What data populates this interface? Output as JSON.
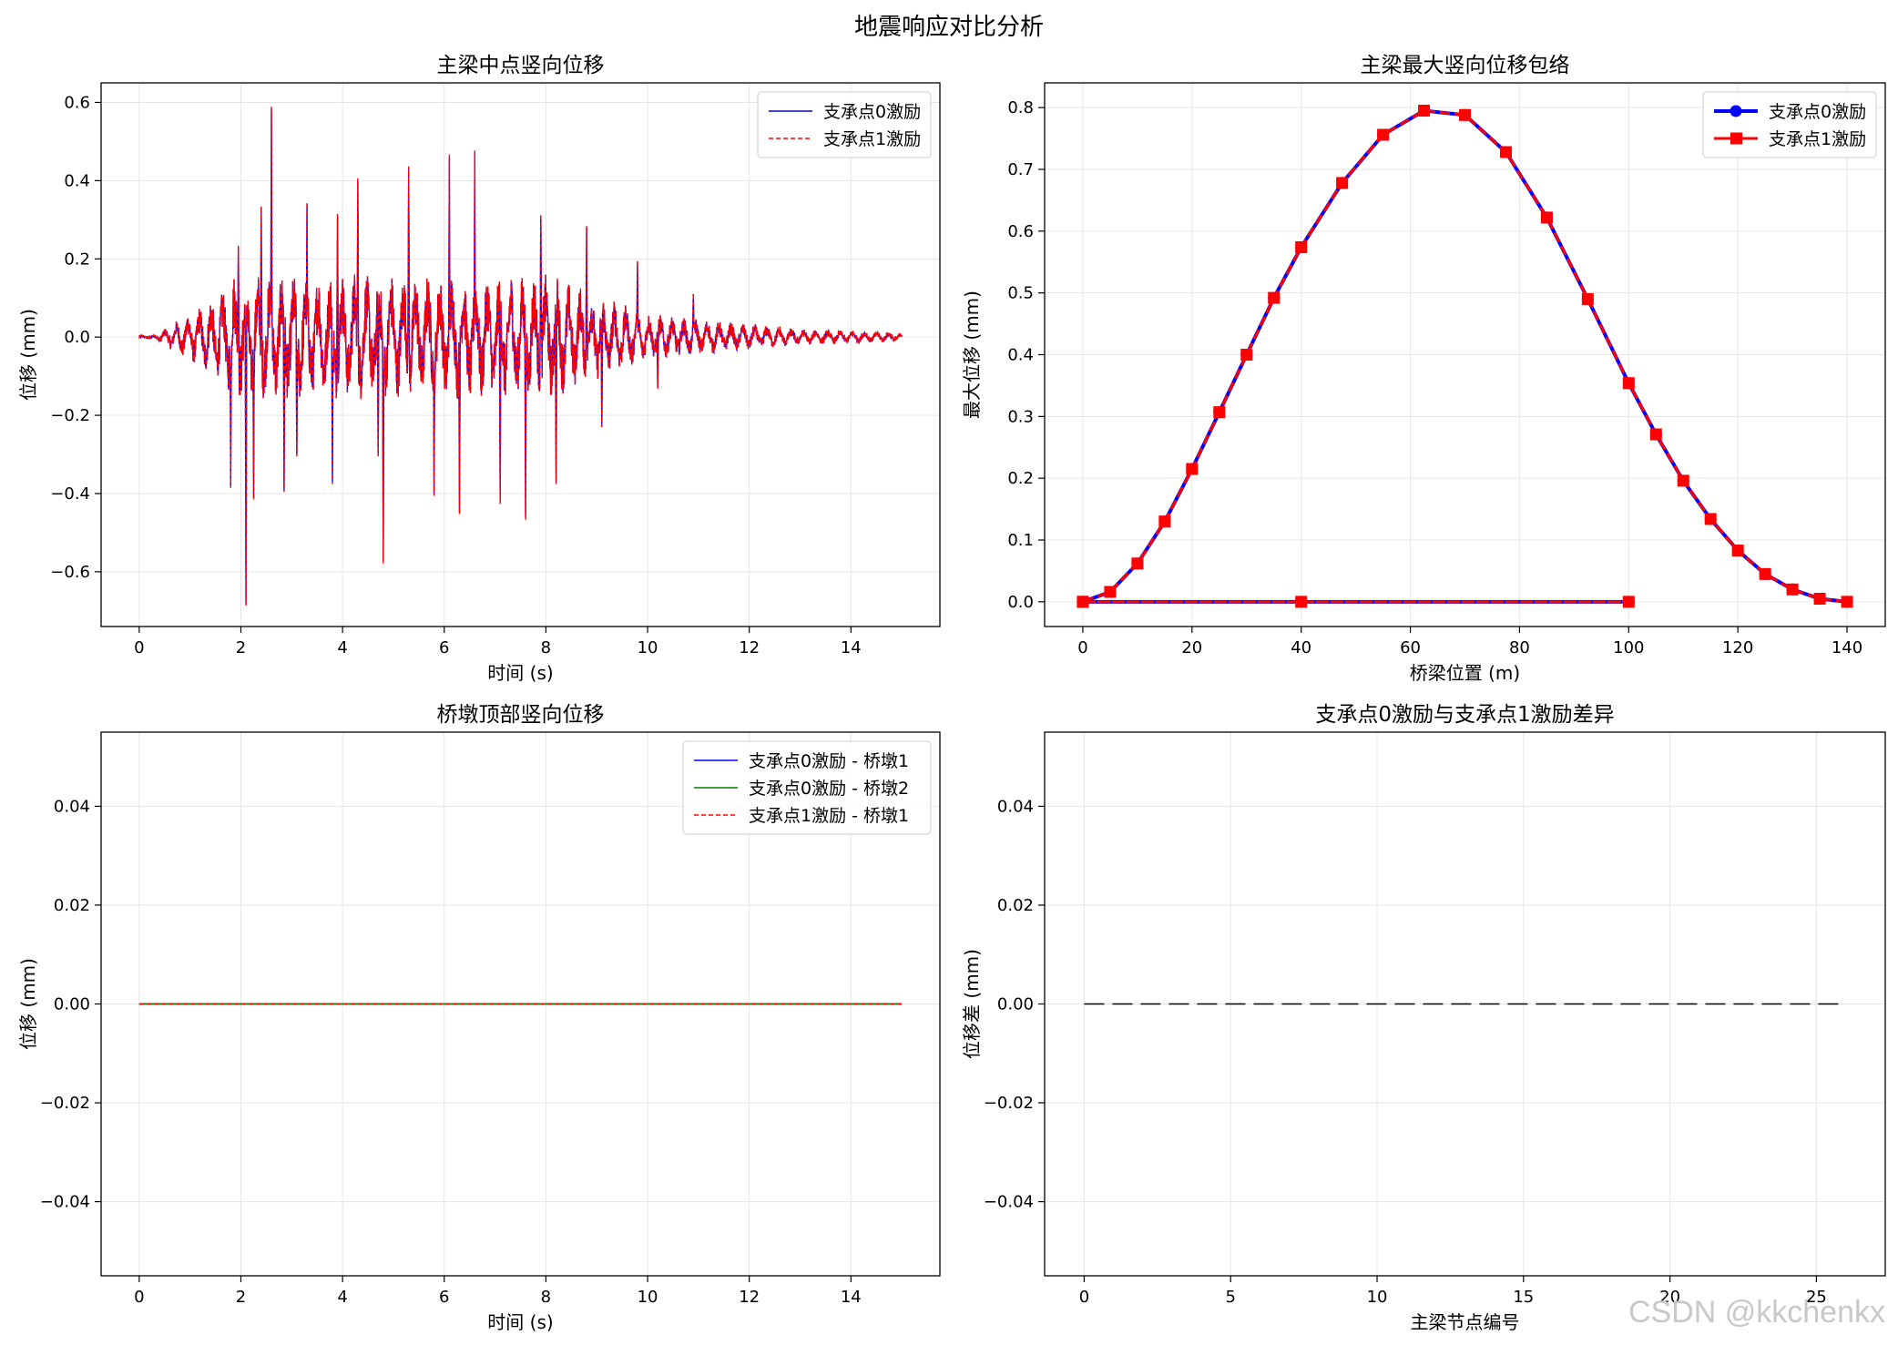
{
  "suptitle": "地震响应对比分析",
  "watermark": "CSDN @kkchenkx",
  "colors": {
    "blue": "#0000ff",
    "red": "#ff0000",
    "green": "#008000",
    "black": "#000000",
    "grid": "#e6e6e6"
  },
  "chart_data": [
    {
      "type": "line",
      "title": "主梁中点竖向位移",
      "xlabel": "时间 (s)",
      "ylabel": "位移 (mm)",
      "xlim": [
        -0.75,
        15.75
      ],
      "ylim": [
        -0.74,
        0.65
      ],
      "xticks": [
        0,
        2,
        4,
        6,
        8,
        10,
        12,
        14
      ],
      "yticks": [
        -0.6,
        -0.4,
        -0.2,
        0.0,
        0.2,
        0.4,
        0.6
      ],
      "yticklabels": [
        "−0.6",
        "−0.4",
        "−0.2",
        "0.0",
        "0.2",
        "0.4",
        "0.6"
      ],
      "grid": true,
      "legend": "top-right",
      "duration": [
        0,
        15
      ],
      "peaks": [
        {
          "x": 1.8,
          "y": -0.38
        },
        {
          "x": 1.95,
          "y": 0.23
        },
        {
          "x": 2.1,
          "y": -0.68
        },
        {
          "x": 2.25,
          "y": -0.41
        },
        {
          "x": 2.4,
          "y": 0.33
        },
        {
          "x": 2.6,
          "y": 0.58
        },
        {
          "x": 2.85,
          "y": -0.39
        },
        {
          "x": 3.1,
          "y": -0.3
        },
        {
          "x": 3.3,
          "y": 0.34
        },
        {
          "x": 3.8,
          "y": -0.37
        },
        {
          "x": 3.9,
          "y": 0.31
        },
        {
          "x": 4.3,
          "y": 0.4
        },
        {
          "x": 4.7,
          "y": -0.3
        },
        {
          "x": 4.8,
          "y": -0.57
        },
        {
          "x": 5.3,
          "y": 0.43
        },
        {
          "x": 5.8,
          "y": -0.4
        },
        {
          "x": 6.1,
          "y": 0.46
        },
        {
          "x": 6.3,
          "y": -0.45
        },
        {
          "x": 6.6,
          "y": 0.47
        },
        {
          "x": 7.1,
          "y": -0.42
        },
        {
          "x": 7.6,
          "y": -0.46
        },
        {
          "x": 7.9,
          "y": 0.31
        },
        {
          "x": 8.2,
          "y": -0.37
        },
        {
          "x": 8.8,
          "y": 0.28
        },
        {
          "x": 9.1,
          "y": -0.23
        },
        {
          "x": 9.8,
          "y": 0.19
        },
        {
          "x": 10.2,
          "y": -0.13
        },
        {
          "x": 10.9,
          "y": 0.11
        }
      ],
      "series": [
        {
          "name": "支承点0激励",
          "color": "#0000ff",
          "style": "solid"
        },
        {
          "name": "支承点1激励",
          "color": "#ff0000",
          "style": "dashed"
        }
      ]
    },
    {
      "type": "line",
      "title": "主梁最大竖向位移包络",
      "xlabel": "桥梁位置 (m)",
      "ylabel": "最大位移 (mm)",
      "xlim": [
        -7,
        147
      ],
      "ylim": [
        -0.04,
        0.84
      ],
      "xticks": [
        0,
        20,
        40,
        60,
        80,
        100,
        120,
        140
      ],
      "yticks": [
        0.0,
        0.1,
        0.2,
        0.3,
        0.4,
        0.5,
        0.6,
        0.7,
        0.8
      ],
      "yticklabels": [
        "0.0",
        "0.1",
        "0.2",
        "0.3",
        "0.4",
        "0.5",
        "0.6",
        "0.7",
        "0.8"
      ],
      "grid": true,
      "legend": "top-right",
      "x": [
        0,
        40,
        100,
        0,
        5,
        10,
        15,
        20,
        25,
        30,
        35,
        40,
        47.5,
        55,
        62.5,
        70,
        77.5,
        85,
        92.5,
        100,
        105,
        110,
        115,
        120,
        125,
        130,
        135,
        140
      ],
      "series": [
        {
          "name": "支承点0激励",
          "color": "#0000ff",
          "marker": "circle",
          "values": [
            0,
            0,
            0,
            0,
            0.016,
            0.062,
            0.13,
            0.215,
            0.307,
            0.4,
            0.492,
            0.574,
            0.678,
            0.756,
            0.795,
            0.788,
            0.728,
            0.622,
            0.49,
            0.354,
            0.271,
            0.196,
            0.134,
            0.083,
            0.045,
            0.02,
            0.005,
            0
          ]
        },
        {
          "name": "支承点1激励",
          "color": "#ff0000",
          "marker": "square",
          "values": [
            0,
            0,
            0,
            0,
            0.016,
            0.062,
            0.13,
            0.215,
            0.307,
            0.4,
            0.492,
            0.574,
            0.678,
            0.756,
            0.795,
            0.788,
            0.728,
            0.622,
            0.49,
            0.354,
            0.271,
            0.196,
            0.134,
            0.083,
            0.045,
            0.02,
            0.005,
            0
          ]
        }
      ]
    },
    {
      "type": "line",
      "title": "桥墩顶部竖向位移",
      "xlabel": "时间 (s)",
      "ylabel": "位移 (mm)",
      "xlim": [
        -0.75,
        15.75
      ],
      "ylim": [
        -0.055,
        0.055
      ],
      "xticks": [
        0,
        2,
        4,
        6,
        8,
        10,
        12,
        14
      ],
      "yticks": [
        -0.04,
        -0.02,
        0.0,
        0.02,
        0.04
      ],
      "yticklabels": [
        "−0.04",
        "−0.02",
        "0.00",
        "0.02",
        "0.04"
      ],
      "grid": true,
      "legend": "top-right",
      "x": [
        0,
        15
      ],
      "series": [
        {
          "name": "支承点0激励 - 桥墩1",
          "color": "#0000ff",
          "style": "solid",
          "values": [
            0,
            0
          ]
        },
        {
          "name": "支承点0激励 - 桥墩2",
          "color": "#008000",
          "style": "solid",
          "values": [
            0,
            0
          ]
        },
        {
          "name": "支承点1激励 - 桥墩1",
          "color": "#ff0000",
          "style": "dashed",
          "values": [
            0,
            0
          ]
        }
      ]
    },
    {
      "type": "line",
      "title": "支承点0激励与支承点1激励差异",
      "xlabel": "主梁节点编号",
      "ylabel": "位移差 (mm)",
      "xlim": [
        -1.35,
        27.35
      ],
      "ylim": [
        -0.055,
        0.055
      ],
      "xticks": [
        0,
        5,
        10,
        15,
        20,
        25
      ],
      "yticks": [
        -0.04,
        -0.02,
        0.0,
        0.02,
        0.04
      ],
      "yticklabels": [
        "−0.04",
        "−0.02",
        "0.00",
        "0.02",
        "0.04"
      ],
      "grid": true,
      "x": [
        0,
        26
      ],
      "series": [
        {
          "color": "#000000",
          "style": "dashed",
          "values": [
            0,
            0
          ]
        }
      ]
    }
  ]
}
